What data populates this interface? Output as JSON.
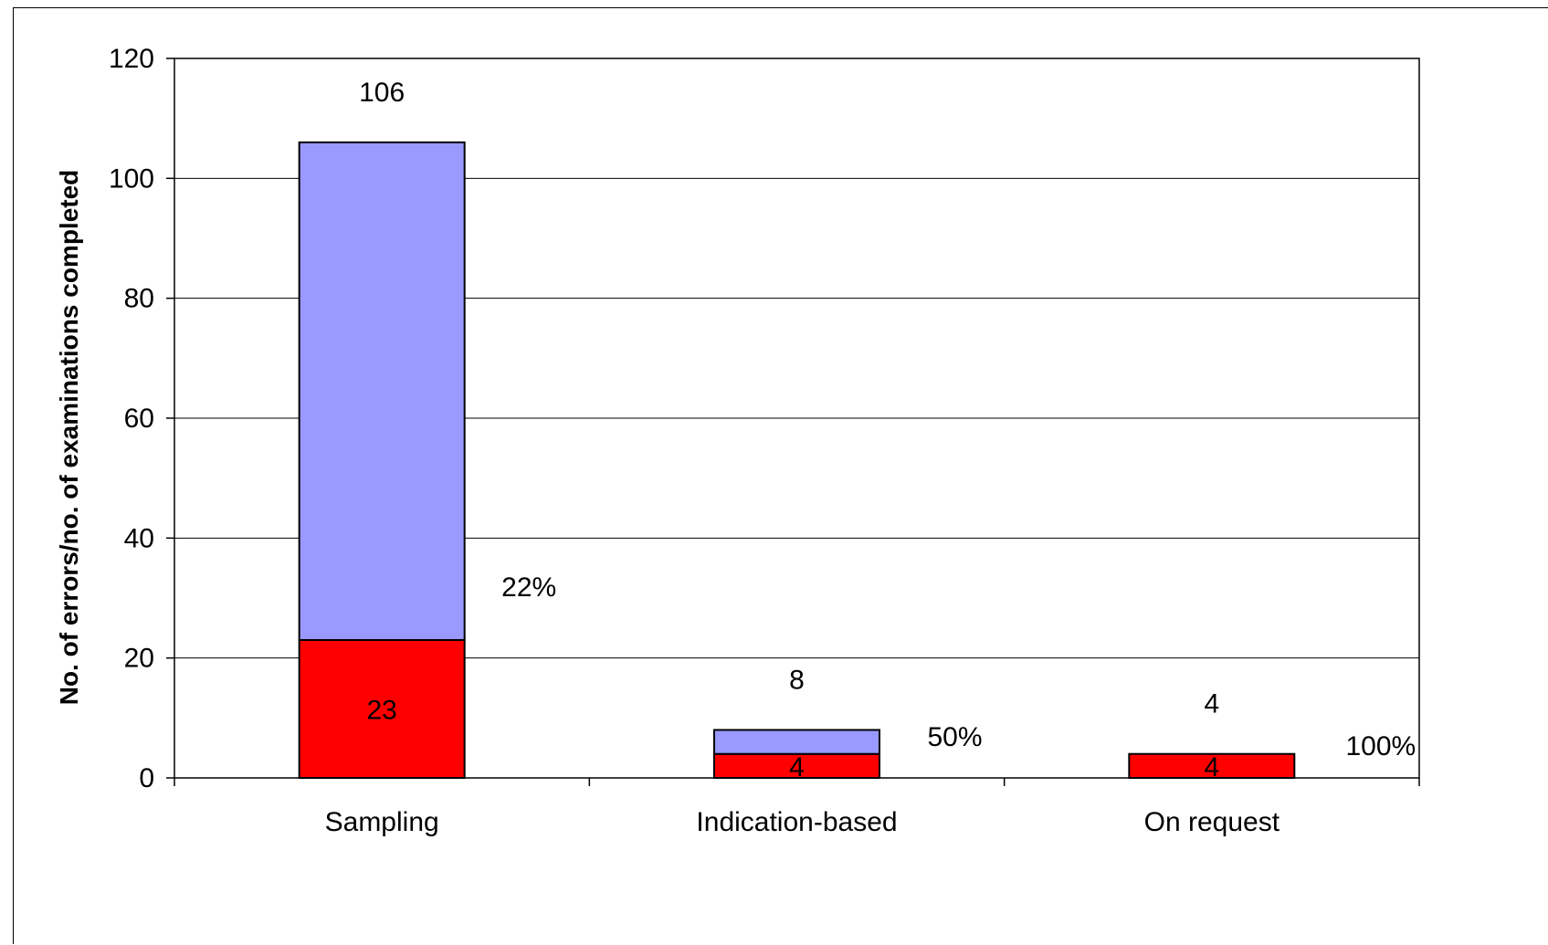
{
  "chart_data": {
    "type": "bar",
    "stacked": true,
    "title": "",
    "xlabel": "",
    "ylabel": "No. of errors/no. of examinations completed",
    "ylim": [
      0,
      120
    ],
    "y_ticks": [
      0,
      20,
      40,
      60,
      80,
      100,
      120
    ],
    "grid": true,
    "legend": "none",
    "categories": [
      "Sampling",
      "Indication-based",
      "On request"
    ],
    "series": [
      {
        "values": [
          23,
          4,
          4
        ],
        "color": "#ff0000"
      },
      {
        "values": [
          83,
          4,
          0
        ],
        "color": "#9999ff"
      }
    ],
    "totals": [
      106,
      8,
      4
    ],
    "total_labels": [
      "106",
      "8",
      "4"
    ],
    "inner_labels": [
      "23",
      "4",
      "4"
    ],
    "percent_labels": [
      "22%",
      "50%",
      "100%"
    ]
  }
}
